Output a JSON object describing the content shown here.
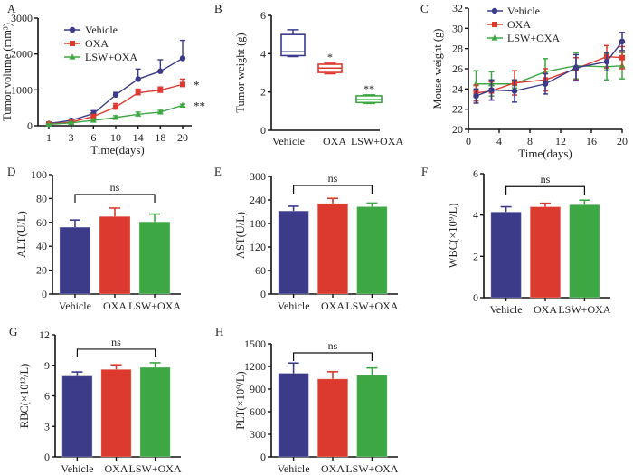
{
  "colors": {
    "Vehicle": "#3b3b8a",
    "OXA": "#dc3a2e",
    "LSW+OXA": "#3da743",
    "axis": "#111111",
    "text": "#222222"
  },
  "chart_data": [
    {
      "panel": "A",
      "type": "line",
      "title": "",
      "xlabel": "Time(days)",
      "ylabel": "Tumor volume (mm³)",
      "x_categorical": true,
      "x": [
        "1",
        "3",
        "6",
        "10",
        "14",
        "18",
        "20"
      ],
      "yticks": [
        0,
        1000,
        2000,
        3000
      ],
      "ylim": [
        0,
        3000
      ],
      "legend": {
        "placement": "top-left",
        "entries": [
          "Vehicle",
          "OXA",
          "LSW+OXA"
        ]
      },
      "series": [
        {
          "name": "Vehicle",
          "marker": "circle",
          "values": [
            60,
            150,
            340,
            860,
            1300,
            1520,
            1880
          ],
          "errors": [
            20,
            40,
            80,
            70,
            280,
            320,
            500
          ]
        },
        {
          "name": "OXA",
          "marker": "square",
          "values": [
            50,
            100,
            260,
            520,
            920,
            990,
            1150
          ],
          "errors": [
            15,
            30,
            50,
            100,
            100,
            90,
            150
          ]
        },
        {
          "name": "LSW+OXA",
          "marker": "triangle",
          "values": [
            40,
            80,
            150,
            230,
            320,
            380,
            570
          ],
          "errors": [
            10,
            20,
            30,
            50,
            60,
            50,
            30
          ]
        }
      ],
      "annotations": [
        {
          "series": "OXA",
          "text": "*"
        },
        {
          "series": "LSW+OXA",
          "text": "**"
        }
      ]
    },
    {
      "panel": "B",
      "type": "box",
      "xlabel": "",
      "ylabel": "Tumor weight (g)",
      "categories": [
        "Vehicle",
        "OXA",
        "LSW+OXA"
      ],
      "yticks": [
        0,
        2,
        4,
        6
      ],
      "ylim": [
        0,
        6
      ],
      "boxes": [
        {
          "name": "Vehicle",
          "min": 3.85,
          "q1": 3.9,
          "median": 4.1,
          "q3": 5.0,
          "max": 5.25,
          "annotation": ""
        },
        {
          "name": "OXA",
          "min": 2.95,
          "q1": 3.02,
          "median": 3.25,
          "q3": 3.45,
          "max": 3.5,
          "annotation": "*"
        },
        {
          "name": "LSW+OXA",
          "min": 1.4,
          "q1": 1.45,
          "median": 1.6,
          "q3": 1.8,
          "max": 1.85,
          "annotation": "**"
        }
      ]
    },
    {
      "panel": "C",
      "type": "line",
      "xlabel": "Time(days)",
      "ylabel": "Mouse weight (g)",
      "x_categorical": false,
      "xticks": [
        0,
        4,
        8,
        12,
        16,
        20
      ],
      "xlim": [
        0,
        20
      ],
      "yticks": [
        20,
        22,
        24,
        26,
        28,
        30,
        32
      ],
      "ylim": [
        20,
        32
      ],
      "legend": {
        "placement": "top-left",
        "entries": [
          "Vehicle",
          "OXA",
          "LSW+OXA"
        ]
      },
      "x": [
        1,
        3,
        6,
        10,
        14,
        18,
        20
      ],
      "series": [
        {
          "name": "Vehicle",
          "marker": "circle",
          "values": [
            23.3,
            23.9,
            23.8,
            24.5,
            26.1,
            26.7,
            28.7
          ],
          "errors": [
            0.7,
            1.0,
            1.1,
            1.0,
            1.3,
            0.9,
            0.9
          ]
        },
        {
          "name": "OXA",
          "marker": "square",
          "values": [
            23.6,
            23.8,
            24.6,
            24.9,
            26.0,
            27.2,
            27.1
          ],
          "errors": [
            0.8,
            0.9,
            1.2,
            1.1,
            1.1,
            1.1,
            1.1
          ]
        },
        {
          "name": "LSW+OXA",
          "marker": "triangle",
          "values": [
            24.5,
            24.5,
            24.5,
            25.7,
            26.3,
            26.2,
            26.3
          ],
          "errors": [
            1.3,
            1.2,
            0.4,
            1.3,
            1.3,
            1.3,
            1.3
          ]
        }
      ]
    },
    {
      "panel": "D",
      "type": "bar",
      "ylabel": "ALT(U/L)",
      "categories": [
        "Vehicle",
        "OXA",
        "LSW+OXA"
      ],
      "yticks": [
        0,
        20,
        40,
        60,
        80,
        100
      ],
      "ylim": [
        0,
        100
      ],
      "values": [
        56,
        65,
        60.5
      ],
      "errors": [
        6,
        7,
        6.5
      ],
      "bracket": {
        "from": "Vehicle",
        "to": "LSW+OXA",
        "label": "ns"
      }
    },
    {
      "panel": "E",
      "type": "bar",
      "ylabel": "AST(U/L)",
      "categories": [
        "Vehicle",
        "OXA",
        "LSW+OXA"
      ],
      "yticks": [
        0,
        60,
        120,
        180,
        240,
        300
      ],
      "ylim": [
        0,
        300
      ],
      "values": [
        212,
        231,
        223
      ],
      "errors": [
        12,
        13,
        9
      ],
      "bracket": {
        "from": "Vehicle",
        "to": "LSW+OXA",
        "label": "ns"
      }
    },
    {
      "panel": "F",
      "type": "bar",
      "ylabel": "WBC(×10⁹/L)",
      "categories": [
        "Vehicle",
        "OXA",
        "LSW+OXA"
      ],
      "yticks": [
        0,
        2,
        4,
        6
      ],
      "ylim": [
        0,
        6
      ],
      "values": [
        4.15,
        4.4,
        4.5
      ],
      "errors": [
        0.25,
        0.17,
        0.22
      ],
      "bracket": {
        "from": "Vehicle",
        "to": "LSW+OXA",
        "label": "ns"
      }
    },
    {
      "panel": "G",
      "type": "bar",
      "ylabel": "RBC(×10¹²/L)",
      "categories": [
        "Vehicle",
        "OXA",
        "LSW+OXA"
      ],
      "yticks": [
        0,
        3,
        6,
        9,
        12
      ],
      "ylim": [
        0,
        12
      ],
      "values": [
        7.95,
        8.6,
        8.8
      ],
      "errors": [
        0.4,
        0.45,
        0.45
      ],
      "bracket": {
        "from": "Vehicle",
        "to": "LSW+OXA",
        "label": "ns"
      }
    },
    {
      "panel": "H",
      "type": "bar",
      "ylabel": "PLT(×10⁹/L)",
      "categories": [
        "Vehicle",
        "OXA",
        "LSW+OXA"
      ],
      "yticks": [
        0,
        300,
        600,
        900,
        1200,
        1500
      ],
      "ylim": [
        0,
        1500
      ],
      "values": [
        1110,
        1035,
        1085
      ],
      "errors": [
        135,
        95,
        95
      ],
      "bracket": {
        "from": "Vehicle",
        "to": "LSW+OXA",
        "label": "ns"
      }
    }
  ]
}
